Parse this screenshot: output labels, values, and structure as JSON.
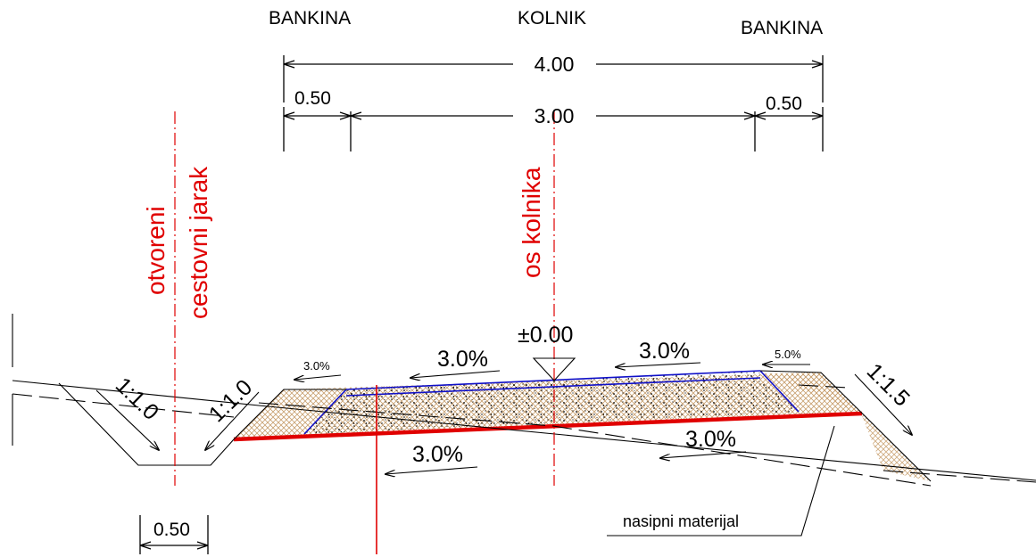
{
  "labels": {
    "bankina_left": "BANKINA",
    "kolnik": "KOLNIK",
    "bankina_right": "BANKINA",
    "dim_total": "4.00",
    "dim_carriageway": "3.00",
    "dim_shoulder_left": "0.50",
    "dim_shoulder_right": "0.50",
    "dim_ditch_bottom": "0.50",
    "ditch_label_1": "otvoreni",
    "ditch_label_2": "cestovni jarak",
    "axis_label": "os kolnika",
    "elevation": "±0.00",
    "slope_top_left": "3.0%",
    "slope_top_right": "3.0%",
    "slope_shoulder_left": "3.0%",
    "slope_shoulder_right": "5.0%",
    "slope_bottom_left": "3.0%",
    "slope_bottom_right": "3.0%",
    "ditch_slope_left": "1:1.0",
    "ditch_slope_right": "1:1.0",
    "embankment_slope": "1:1.5",
    "fill_material": "nasipni materijal"
  },
  "colors": {
    "red": "#e00000",
    "blue": "#1010c8",
    "fill_hatch": "#c8a070",
    "base_stipple": "#000000"
  }
}
